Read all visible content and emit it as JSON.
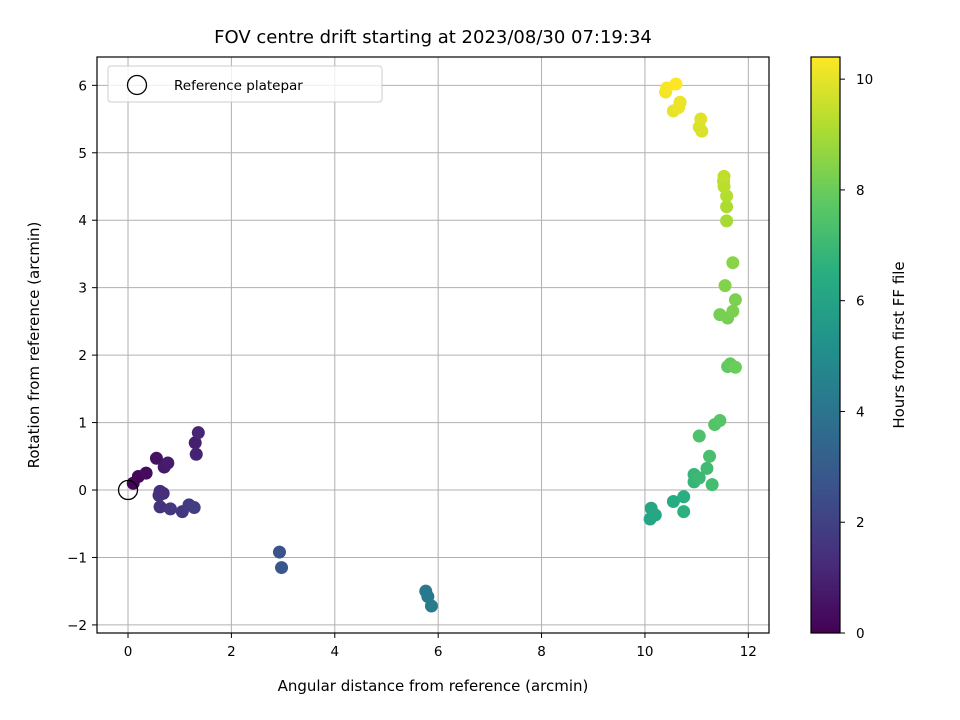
{
  "chart_data": {
    "type": "scatter",
    "title": "FOV centre drift starting at 2023/08/30 07:19:34",
    "xlabel": "Angular distance from reference (arcmin)",
    "ylabel": "Rotation from reference (arcmin)",
    "xlim": [
      -0.6,
      12.4
    ],
    "ylim": [
      -2.12,
      6.42
    ],
    "xticks": [
      0,
      2,
      4,
      6,
      8,
      10,
      12
    ],
    "yticks": [
      -2,
      -1,
      0,
      1,
      2,
      3,
      4,
      5,
      6
    ],
    "grid": true,
    "legend": {
      "placement": "top-left",
      "entries": [
        "Reference platepar"
      ]
    },
    "reference_point": {
      "x": 0,
      "y": 0,
      "label": "Reference platepar"
    },
    "colorbar": {
      "label": "Hours from first FF file",
      "colormap": "viridis",
      "range": [
        0,
        10.4
      ],
      "ticks": [
        0,
        2,
        4,
        6,
        8,
        10
      ]
    },
    "points": [
      {
        "x": 0.1,
        "y": 0.1,
        "c": 0.1
      },
      {
        "x": 0.2,
        "y": 0.2,
        "c": 0.2
      },
      {
        "x": 0.35,
        "y": 0.25,
        "c": 0.3
      },
      {
        "x": 0.55,
        "y": 0.47,
        "c": 0.5
      },
      {
        "x": 0.72,
        "y": 0.37,
        "c": 0.6
      },
      {
        "x": 0.7,
        "y": 0.34,
        "c": 0.7
      },
      {
        "x": 0.77,
        "y": 0.4,
        "c": 0.8
      },
      {
        "x": 1.3,
        "y": 0.7,
        "c": 0.9
      },
      {
        "x": 1.32,
        "y": 0.53,
        "c": 1.0
      },
      {
        "x": 1.36,
        "y": 0.85,
        "c": 1.1
      },
      {
        "x": 0.62,
        "y": -0.02,
        "c": 1.3
      },
      {
        "x": 0.68,
        "y": -0.05,
        "c": 1.3
      },
      {
        "x": 0.6,
        "y": -0.08,
        "c": 1.4
      },
      {
        "x": 0.62,
        "y": -0.25,
        "c": 1.5
      },
      {
        "x": 0.82,
        "y": -0.28,
        "c": 1.6
      },
      {
        "x": 1.05,
        "y": -0.32,
        "c": 1.7
      },
      {
        "x": 1.18,
        "y": -0.22,
        "c": 1.8
      },
      {
        "x": 1.28,
        "y": -0.26,
        "c": 1.9
      },
      {
        "x": 2.93,
        "y": -0.92,
        "c": 2.7
      },
      {
        "x": 2.97,
        "y": -1.15,
        "c": 2.8
      },
      {
        "x": 5.76,
        "y": -1.5,
        "c": 4.1
      },
      {
        "x": 5.8,
        "y": -1.58,
        "c": 4.2
      },
      {
        "x": 5.87,
        "y": -1.72,
        "c": 4.3
      },
      {
        "x": 10.1,
        "y": -0.43,
        "c": 6.1
      },
      {
        "x": 10.12,
        "y": -0.27,
        "c": 6.1
      },
      {
        "x": 10.2,
        "y": -0.37,
        "c": 6.2
      },
      {
        "x": 10.55,
        "y": -0.17,
        "c": 6.4
      },
      {
        "x": 10.75,
        "y": -0.1,
        "c": 6.5
      },
      {
        "x": 10.75,
        "y": -0.32,
        "c": 6.6
      },
      {
        "x": 10.95,
        "y": 0.12,
        "c": 6.8
      },
      {
        "x": 10.95,
        "y": 0.23,
        "c": 6.9
      },
      {
        "x": 11.05,
        "y": 0.18,
        "c": 7.0
      },
      {
        "x": 11.2,
        "y": 0.32,
        "c": 7.1
      },
      {
        "x": 11.3,
        "y": 0.08,
        "c": 7.2
      },
      {
        "x": 11.25,
        "y": 0.5,
        "c": 7.3
      },
      {
        "x": 11.05,
        "y": 0.8,
        "c": 7.4
      },
      {
        "x": 11.35,
        "y": 0.97,
        "c": 7.5
      },
      {
        "x": 11.45,
        "y": 1.03,
        "c": 7.6
      },
      {
        "x": 11.6,
        "y": 1.83,
        "c": 7.8
      },
      {
        "x": 11.65,
        "y": 1.87,
        "c": 7.9
      },
      {
        "x": 11.75,
        "y": 1.82,
        "c": 8.0
      },
      {
        "x": 11.45,
        "y": 2.6,
        "c": 8.2
      },
      {
        "x": 11.6,
        "y": 2.55,
        "c": 8.2
      },
      {
        "x": 11.7,
        "y": 2.65,
        "c": 8.3
      },
      {
        "x": 11.75,
        "y": 2.82,
        "c": 8.3
      },
      {
        "x": 11.55,
        "y": 3.03,
        "c": 8.4
      },
      {
        "x": 11.7,
        "y": 3.37,
        "c": 8.5
      },
      {
        "x": 11.58,
        "y": 3.99,
        "c": 9.0
      },
      {
        "x": 11.58,
        "y": 4.2,
        "c": 9.1
      },
      {
        "x": 11.58,
        "y": 4.36,
        "c": 9.2
      },
      {
        "x": 11.53,
        "y": 4.5,
        "c": 9.3
      },
      {
        "x": 11.52,
        "y": 4.58,
        "c": 9.3
      },
      {
        "x": 11.53,
        "y": 4.65,
        "c": 9.4
      },
      {
        "x": 11.1,
        "y": 5.32,
        "c": 9.8
      },
      {
        "x": 11.05,
        "y": 5.38,
        "c": 9.8
      },
      {
        "x": 11.08,
        "y": 5.5,
        "c": 9.9
      },
      {
        "x": 10.55,
        "y": 5.62,
        "c": 10.0
      },
      {
        "x": 10.65,
        "y": 5.67,
        "c": 10.1
      },
      {
        "x": 10.68,
        "y": 5.75,
        "c": 10.1
      },
      {
        "x": 10.4,
        "y": 5.9,
        "c": 10.2
      },
      {
        "x": 10.42,
        "y": 5.96,
        "c": 10.3
      },
      {
        "x": 10.6,
        "y": 6.02,
        "c": 10.4
      }
    ]
  }
}
